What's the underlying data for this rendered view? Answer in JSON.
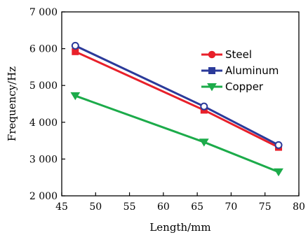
{
  "chart_data": {
    "type": "line",
    "xlabel": "Length/mm",
    "ylabel": "Frequency/Hz",
    "xlim": [
      45,
      80
    ],
    "ylim": [
      2000,
      7000
    ],
    "x_ticks": [
      45,
      50,
      55,
      60,
      65,
      70,
      75,
      80
    ],
    "y_ticks": [
      2000,
      3000,
      4000,
      5000,
      6000,
      7000
    ],
    "x_tick_labels": [
      "45",
      "50",
      "55",
      "60",
      "65",
      "70",
      "75",
      "80"
    ],
    "y_tick_labels": [
      "2 000",
      "3 000",
      "4 000",
      "5 000",
      "6 000",
      "7 000"
    ],
    "grid": false,
    "legend_position": "top-right",
    "x": [
      47,
      66,
      77
    ],
    "series": [
      {
        "name": "Steel",
        "values": [
          5920,
          4330,
          3320
        ],
        "color": "#e8202a",
        "marker": "square",
        "legend_marker": "circle"
      },
      {
        "name": "Aluminum",
        "values": [
          6080,
          4430,
          3380
        ],
        "color": "#2b3a9a",
        "marker": "circle",
        "legend_marker": "square"
      },
      {
        "name": "Copper",
        "values": [
          4720,
          3460,
          2650
        ],
        "color": "#1cab4a",
        "marker": "triangle-down",
        "legend_marker": "triangle-down"
      }
    ]
  }
}
